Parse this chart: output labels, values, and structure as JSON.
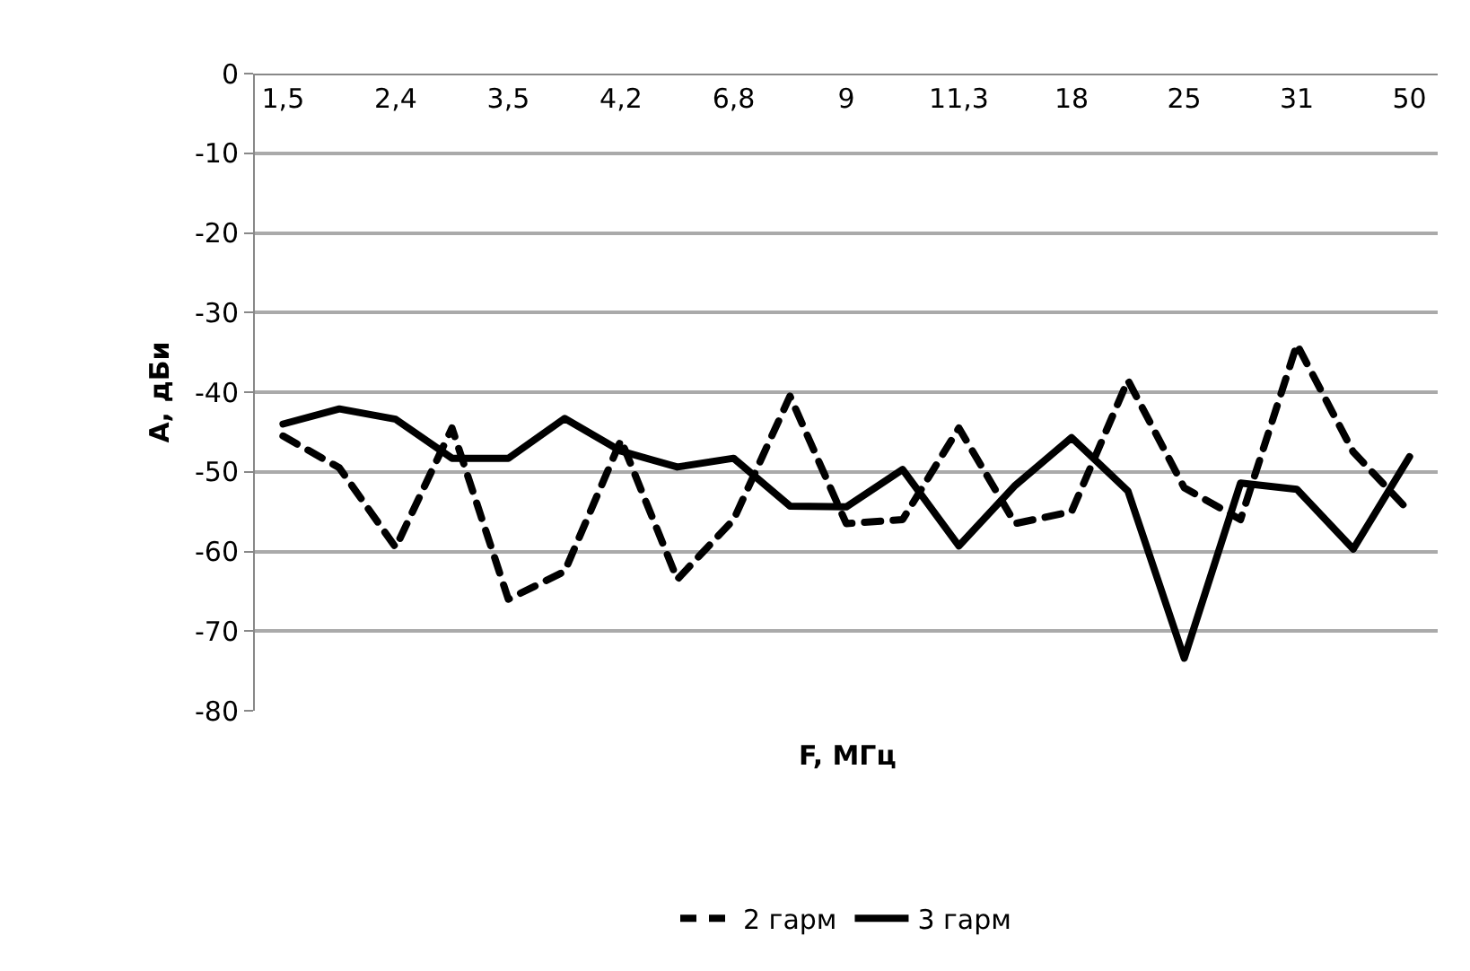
{
  "chart_data": {
    "type": "line",
    "xlabel": "F, МГц",
    "ylabel": "А, дБи",
    "categories": [
      "1,5",
      null,
      "2,4",
      null,
      "3,5",
      null,
      "4,2",
      null,
      "6,8",
      null,
      "9",
      null,
      "11,3",
      null,
      "18",
      null,
      "25",
      null,
      "31",
      null,
      "50"
    ],
    "series": [
      {
        "name": "2 гарм",
        "color": "#000000",
        "line_style": "dashed",
        "values": [
          -45.5,
          -49.5,
          -59.5,
          -44.5,
          -66,
          -62.5,
          -46,
          -63.5,
          -56,
          -40.5,
          -56.5,
          -56,
          -44.5,
          -56.5,
          -55,
          -38.5,
          -52,
          -56,
          -34,
          -47.5,
          -55
        ]
      },
      {
        "name": "3 гарм",
        "color": "#000000",
        "line_style": "solid",
        "values": [
          -44,
          -42.1,
          -43.4,
          -48.3,
          -48.3,
          -43.3,
          -47.4,
          -49.4,
          -48.3,
          -54.3,
          -54.4,
          -49.7,
          -59.3,
          -51.7,
          -45.7,
          -52.4,
          -73.4,
          -51.4,
          -52.2,
          -59.7,
          -48.1
        ]
      }
    ],
    "ylim": [
      -80,
      0
    ],
    "yticks": [
      0,
      -10,
      -20,
      -30,
      -40,
      -50,
      -60,
      -70,
      -80
    ],
    "grid": "y",
    "legend": "bottom",
    "marker": "none"
  }
}
